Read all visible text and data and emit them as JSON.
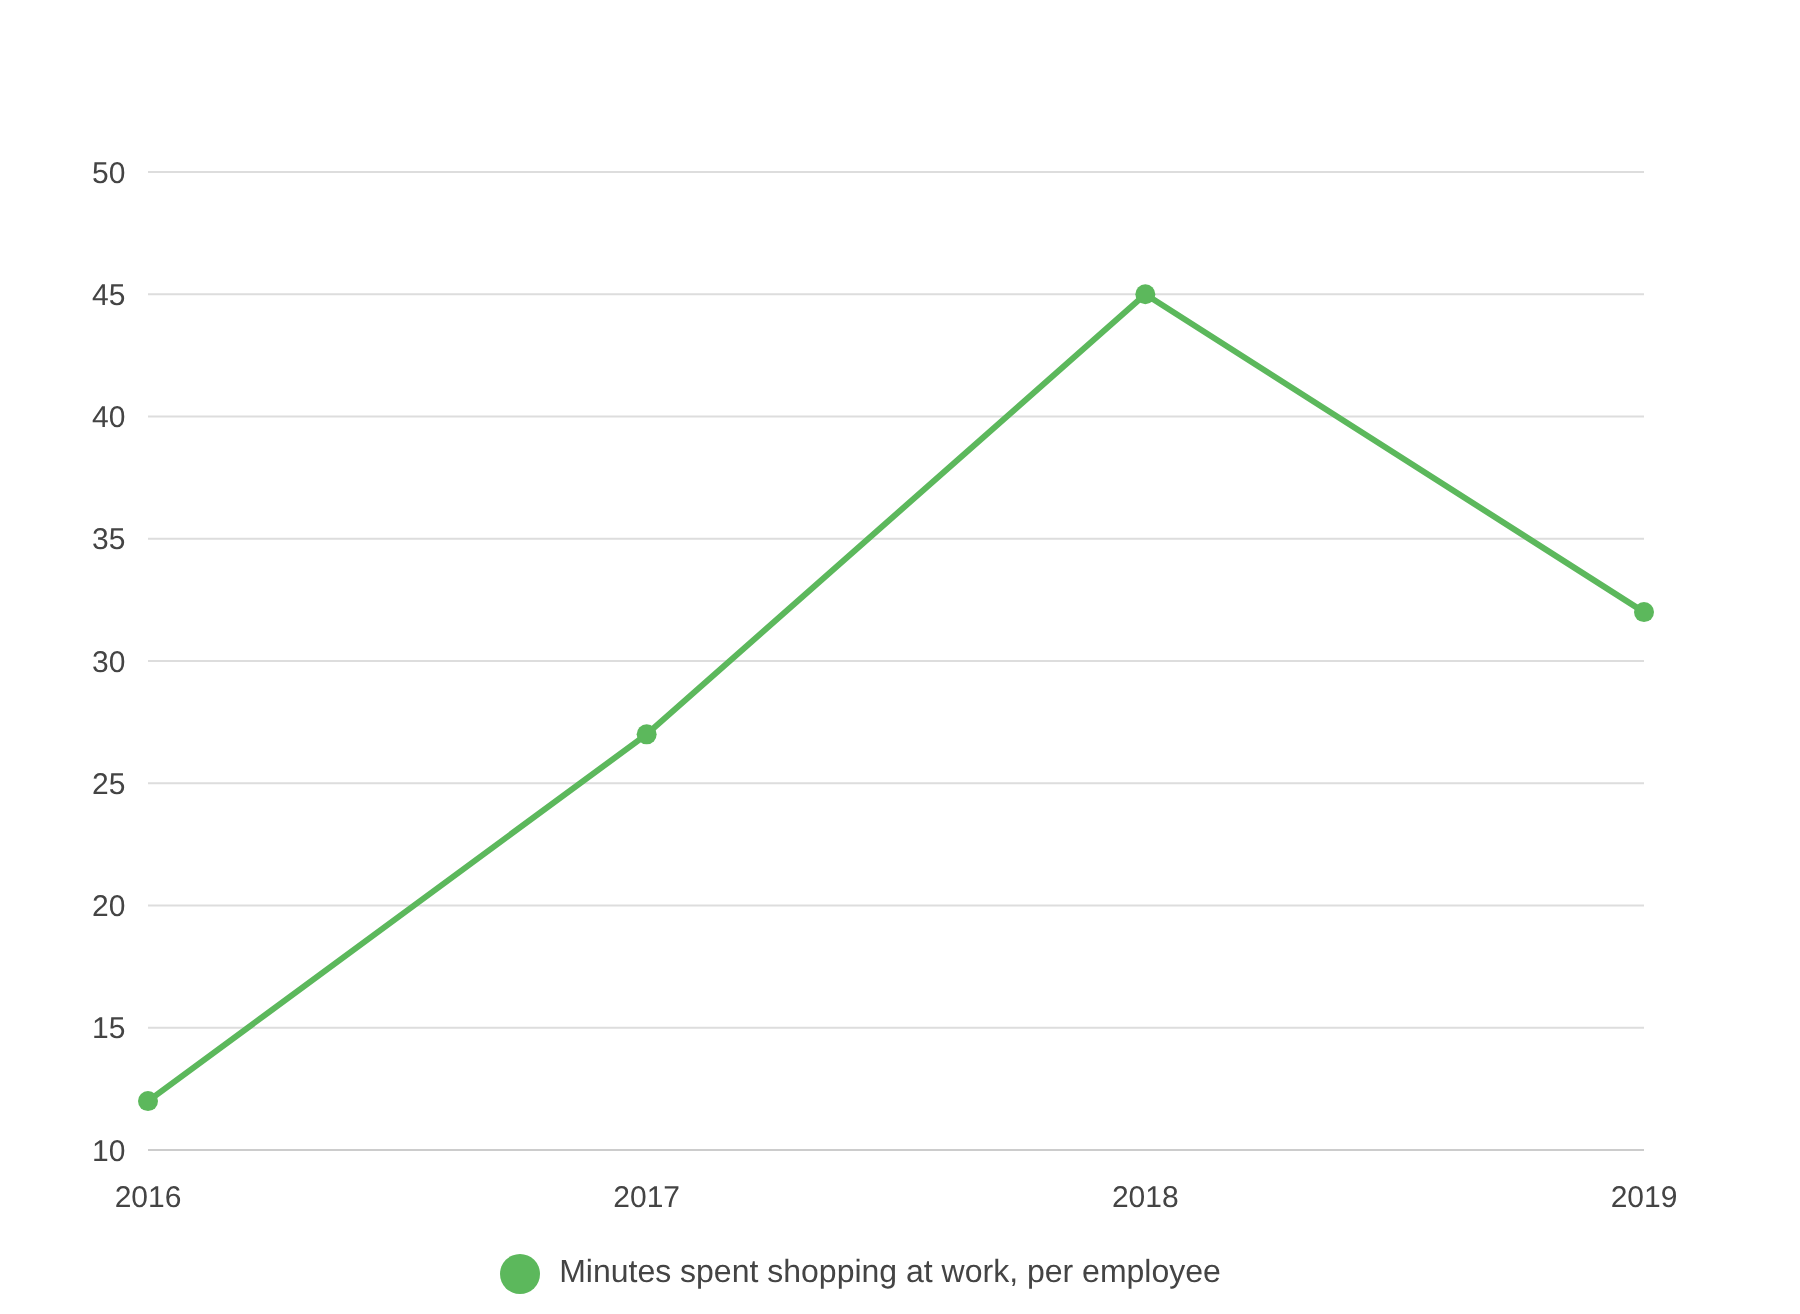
{
  "chart_data": {
    "type": "line",
    "categories": [
      "2016",
      "2017",
      "2018",
      "2019"
    ],
    "series": [
      {
        "name": "Minutes spent shopping at work, per employee",
        "color": "#5cb85c",
        "values": [
          12,
          27,
          45,
          32
        ]
      }
    ],
    "ylim": [
      10,
      50
    ],
    "yticks": [
      10,
      15,
      20,
      25,
      30,
      35,
      40,
      45,
      50
    ],
    "grid": "y",
    "legend": "bottom",
    "marker": "circle",
    "line_style": "solid"
  }
}
